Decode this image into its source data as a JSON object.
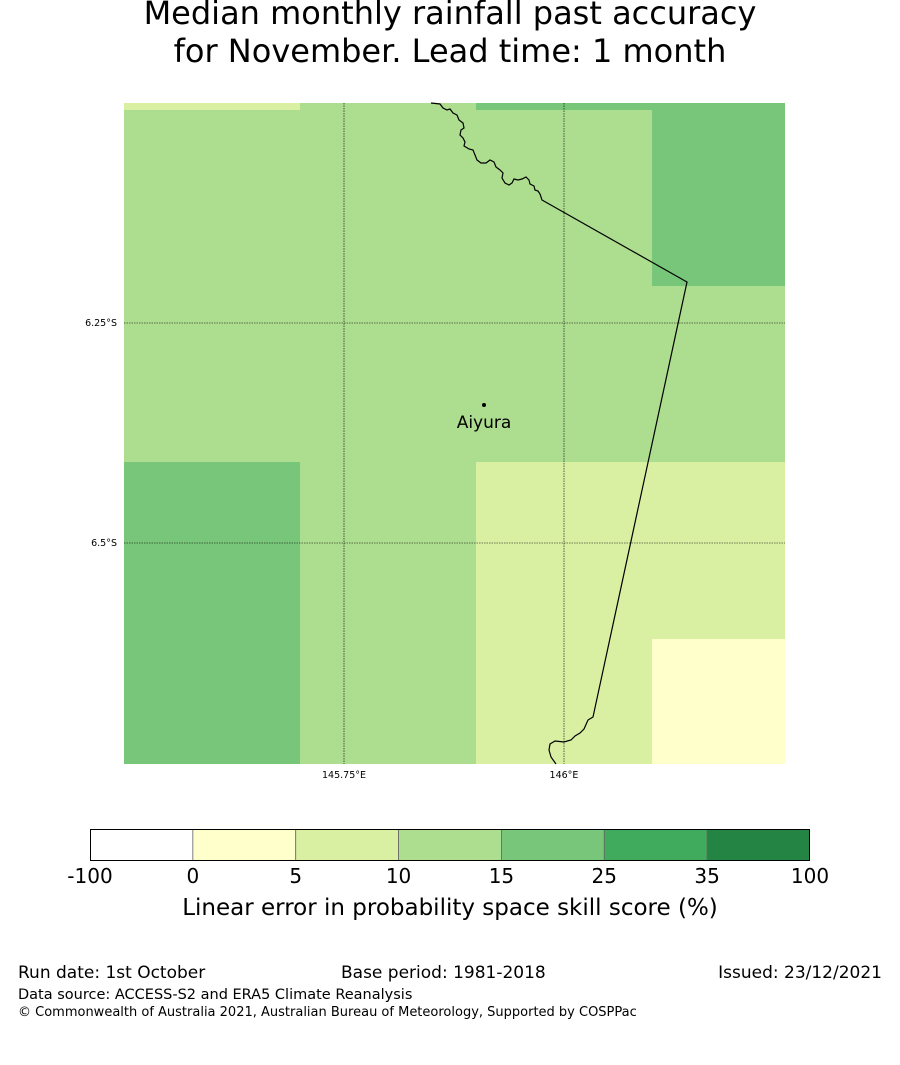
{
  "title": {
    "line1": "Median monthly rainfall past accuracy",
    "line2": "for November. Lead time: 1 month"
  },
  "map": {
    "place_label": "Aiyura",
    "lat_ticks": [
      "6.25°S",
      "6.5°S"
    ],
    "lon_ticks": [
      "145.75°E",
      "146°E"
    ]
  },
  "legend": {
    "title": "Linear error in probability space skill score (%)",
    "tick_labels": [
      "-100",
      "0",
      "5",
      "10",
      "15",
      "25",
      "35",
      "100"
    ],
    "bins": [
      {
        "range": "-100 to 0",
        "color": "#ffffff"
      },
      {
        "range": "0 to 5",
        "color": "#ffffcc"
      },
      {
        "range": "5 to 10",
        "color": "#d9f0a3"
      },
      {
        "range": "10 to 15",
        "color": "#addd8e"
      },
      {
        "range": "15 to 25",
        "color": "#78c679"
      },
      {
        "range": "25 to 35",
        "color": "#41ab5d"
      },
      {
        "range": "35 to 100",
        "color": "#238443"
      }
    ]
  },
  "footer": {
    "run_date": "Run date: 1st October",
    "base_period": "Base period: 1981-2018",
    "issued": "Issued: 23/12/2021",
    "data_source": "Data source: ACCESS-S2 and ERA5 Climate Reanalysis",
    "copyright": "© Commonwealth of Australia 2021, Australian Bureau of Meteorology, Supported by COSPPac"
  }
}
